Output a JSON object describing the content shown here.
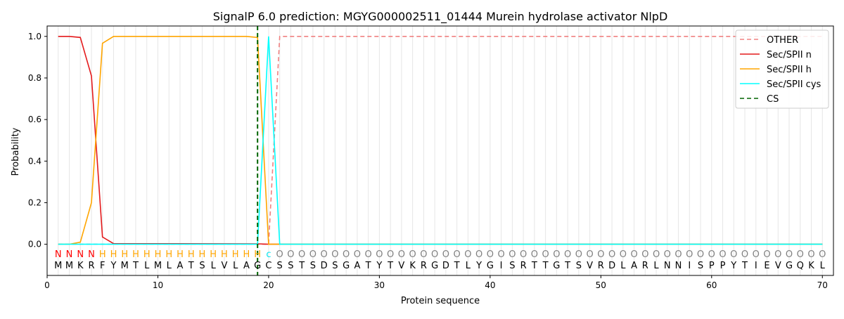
{
  "chart_data": {
    "type": "line",
    "title": "SignalP 6.0 prediction: MGYG000002511_01444 Murein hydrolase activator NlpD",
    "xlabel": "Protein sequence",
    "ylabel": "Probability",
    "xlim": [
      0,
      71
    ],
    "ylim": [
      -0.15,
      1.05
    ],
    "xticks": [
      0,
      10,
      20,
      30,
      40,
      50,
      60,
      70
    ],
    "yticks": [
      0.0,
      0.2,
      0.4,
      0.6,
      0.8,
      1.0
    ],
    "ytick_labels": [
      "0.0",
      "0.2",
      "0.4",
      "0.6",
      "0.8",
      "1.0"
    ],
    "grid": "vertical lines at each residue",
    "legend_position": "top-right",
    "sequence": [
      "M",
      "M",
      "K",
      "R",
      "F",
      "Y",
      "M",
      "T",
      "L",
      "M",
      "L",
      "A",
      "T",
      "S",
      "L",
      "V",
      "L",
      "A",
      "G",
      "C",
      "S",
      "S",
      "T",
      "S",
      "D",
      "S",
      "G",
      "A",
      "T",
      "Y",
      "T",
      "V",
      "K",
      "R",
      "G",
      "D",
      "T",
      "L",
      "Y",
      "G",
      "I",
      "S",
      "R",
      "T",
      "T",
      "G",
      "T",
      "S",
      "V",
      "R",
      "D",
      "L",
      "A",
      "R",
      "L",
      "N",
      "N",
      "I",
      "S",
      "P",
      "P",
      "Y",
      "T",
      "I",
      "E",
      "V",
      "G",
      "Q",
      "K",
      "L"
    ],
    "labels": [
      "N",
      "N",
      "N",
      "N",
      "H",
      "H",
      "H",
      "H",
      "H",
      "H",
      "H",
      "H",
      "H",
      "H",
      "H",
      "H",
      "H",
      "H",
      "H",
      "c",
      "O",
      "O",
      "O",
      "O",
      "O",
      "O",
      "O",
      "O",
      "O",
      "O",
      "O",
      "O",
      "O",
      "O",
      "O",
      "O",
      "O",
      "O",
      "O",
      "O",
      "O",
      "O",
      "O",
      "O",
      "O",
      "O",
      "O",
      "O",
      "O",
      "O",
      "O",
      "O",
      "O",
      "O",
      "O",
      "O",
      "O",
      "O",
      "O",
      "O",
      "O",
      "O",
      "O",
      "O",
      "O",
      "O",
      "O",
      "O",
      "O",
      "O"
    ],
    "label_colors": {
      "N": "#ff0000",
      "H": "#ffa500",
      "c": "#00e5ee",
      "O": "#808080"
    },
    "series": [
      {
        "name": "OTHER",
        "color": "#f08080",
        "dash": "dashed",
        "x": [
          1,
          19,
          20,
          21,
          70
        ],
        "y": [
          0,
          0,
          0,
          1.0,
          1.0
        ]
      },
      {
        "name": "Sec/SPII n",
        "color": "#e41a1c",
        "dash": "solid",
        "x": [
          1,
          2,
          3,
          4,
          5,
          6,
          19,
          20,
          70
        ],
        "y": [
          1.0,
          1.0,
          0.995,
          0.81,
          0.035,
          0.003,
          0.002,
          0,
          0
        ]
      },
      {
        "name": "Sec/SPII h",
        "color": "#ffa500",
        "dash": "solid",
        "x": [
          1,
          2,
          3,
          4,
          5,
          6,
          7,
          18,
          19,
          20,
          70
        ],
        "y": [
          0,
          0,
          0.01,
          0.2,
          0.967,
          1.0,
          1.0,
          1.0,
          0.995,
          0,
          0
        ]
      },
      {
        "name": "Sec/SPII cys",
        "color": "#00ffff",
        "dash": "solid",
        "x": [
          1,
          19,
          20,
          21,
          70
        ],
        "y": [
          0,
          0,
          1.0,
          0,
          0
        ]
      },
      {
        "name": "CS",
        "color": "#006400",
        "dash": "dashed",
        "vline": 19
      }
    ]
  }
}
